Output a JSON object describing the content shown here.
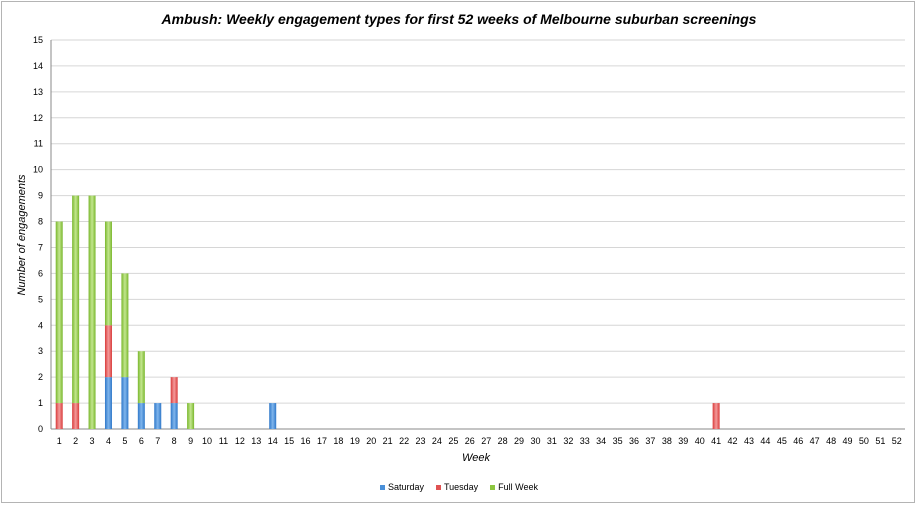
{
  "chart_data": {
    "type": "bar",
    "stacked": true,
    "title": "Ambush: Weekly engagement types for first 52 weeks of Melbourne suburban screenings",
    "xlabel": "Week",
    "ylabel": "Number of engagements",
    "ylim": [
      0,
      15
    ],
    "ytick_step": 1,
    "grid": "horizontal",
    "legend_position": "bottom",
    "categories": [
      "1",
      "2",
      "3",
      "4",
      "5",
      "6",
      "7",
      "8",
      "9",
      "10",
      "11",
      "12",
      "13",
      "14",
      "15",
      "16",
      "17",
      "18",
      "19",
      "20",
      "21",
      "22",
      "23",
      "24",
      "25",
      "26",
      "27",
      "28",
      "29",
      "30",
      "31",
      "32",
      "33",
      "34",
      "35",
      "36",
      "37",
      "38",
      "39",
      "40",
      "41",
      "42",
      "43",
      "44",
      "45",
      "46",
      "47",
      "48",
      "49",
      "50",
      "51",
      "52"
    ],
    "series": [
      {
        "name": "Saturday",
        "color": "#4a90d9",
        "values": [
          0,
          0,
          0,
          2,
          2,
          1,
          1,
          1,
          0,
          0,
          0,
          0,
          0,
          1,
          0,
          0,
          0,
          0,
          0,
          0,
          0,
          0,
          0,
          0,
          0,
          0,
          0,
          0,
          0,
          0,
          0,
          0,
          0,
          0,
          0,
          0,
          0,
          0,
          0,
          0,
          0,
          0,
          0,
          0,
          0,
          0,
          0,
          0,
          0,
          0,
          0,
          0
        ]
      },
      {
        "name": "Tuesday",
        "color": "#e05252",
        "values": [
          1,
          1,
          0,
          2,
          0,
          0,
          0,
          1,
          0,
          0,
          0,
          0,
          0,
          0,
          0,
          0,
          0,
          0,
          0,
          0,
          0,
          0,
          0,
          0,
          0,
          0,
          0,
          0,
          0,
          0,
          0,
          0,
          0,
          0,
          0,
          0,
          0,
          0,
          0,
          0,
          1,
          0,
          0,
          0,
          0,
          0,
          0,
          0,
          0,
          0,
          0,
          0
        ]
      },
      {
        "name": "Full Week",
        "color": "#8cc63f",
        "values": [
          7,
          8,
          9,
          4,
          4,
          2,
          0,
          0,
          1,
          0,
          0,
          0,
          0,
          0,
          0,
          0,
          0,
          0,
          0,
          0,
          0,
          0,
          0,
          0,
          0,
          0,
          0,
          0,
          0,
          0,
          0,
          0,
          0,
          0,
          0,
          0,
          0,
          0,
          0,
          0,
          0,
          0,
          0,
          0,
          0,
          0,
          0,
          0,
          0,
          0,
          0,
          0
        ]
      }
    ]
  }
}
